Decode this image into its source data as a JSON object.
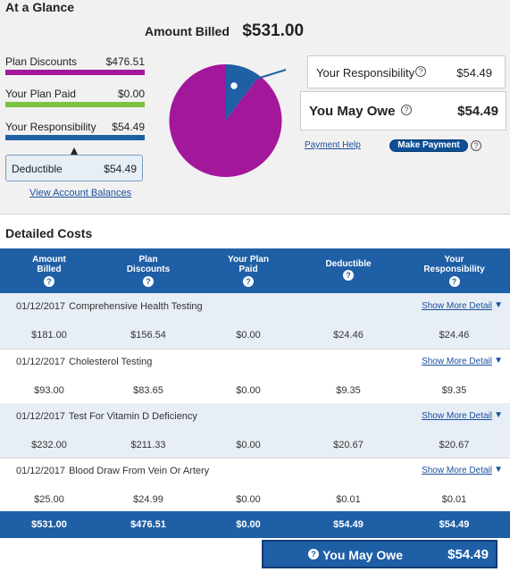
{
  "glance": {
    "title": "At a Glance",
    "legend": [
      {
        "label": "Plan Discounts",
        "value": "$476.51",
        "color": "#a3179b"
      },
      {
        "label": "Your Plan Paid",
        "value": "$0.00",
        "color": "#7cc242"
      },
      {
        "label": "Your Responsibility",
        "value": "$54.49",
        "color": "#1f5fa6"
      }
    ],
    "deductible": {
      "label": "Deductible",
      "value": "$54.49"
    },
    "view_balances": "View Account Balances",
    "amount_billed": {
      "label": "Amount Billed",
      "value": "$531.00"
    },
    "responsibility": {
      "label": "Your Responsibility",
      "value": "$54.49",
      "help": "?"
    },
    "may_owe": {
      "label": "You May Owe",
      "value": "$54.49",
      "help": "?"
    },
    "payment_help": "Payment Help",
    "make_payment": "Make Payment",
    "make_payment_help": "?"
  },
  "pie": {
    "slices": [
      {
        "name": "Plan Discounts",
        "value": 476.51,
        "color": "#a3179b"
      },
      {
        "name": "Your Responsibility",
        "value": 54.49,
        "color": "#1f5fa6"
      }
    ]
  },
  "detail": {
    "title": "Detailed Costs",
    "headers": [
      {
        "l1": "Amount",
        "l2": "Billed",
        "help": "?"
      },
      {
        "l1": "Plan",
        "l2": "Discounts",
        "help": "?"
      },
      {
        "l1": "Your Plan",
        "l2": "Paid",
        "help": "?"
      },
      {
        "l1": "Deductible",
        "l2": "",
        "help": "?"
      },
      {
        "l1": "Your",
        "l2": "Responsibility",
        "help": "?"
      }
    ],
    "show_more": "Show More Detail",
    "show_more_arrow": "▼",
    "rows": [
      {
        "date": "01/12/2017",
        "desc": "Comprehensive Health Testing",
        "values": [
          "$181.00",
          "$156.54",
          "$0.00",
          "$24.46",
          "$24.46"
        ]
      },
      {
        "date": "01/12/2017",
        "desc": "Cholesterol Testing",
        "values": [
          "$93.00",
          "$83.65",
          "$0.00",
          "$9.35",
          "$9.35"
        ]
      },
      {
        "date": "01/12/2017",
        "desc": "Test For Vitamin D Deficiency",
        "values": [
          "$232.00",
          "$211.33",
          "$0.00",
          "$20.67",
          "$20.67"
        ]
      },
      {
        "date": "01/12/2017",
        "desc": "Blood Draw From Vein Or Artery",
        "values": [
          "$25.00",
          "$24.99",
          "$0.00",
          "$0.01",
          "$0.01"
        ]
      }
    ],
    "totals": [
      "$531.00",
      "$476.51",
      "$0.00",
      "$54.49",
      "$54.49"
    ],
    "owe_bar": {
      "label": "You May Owe",
      "value": "$54.49",
      "help": "?"
    }
  }
}
